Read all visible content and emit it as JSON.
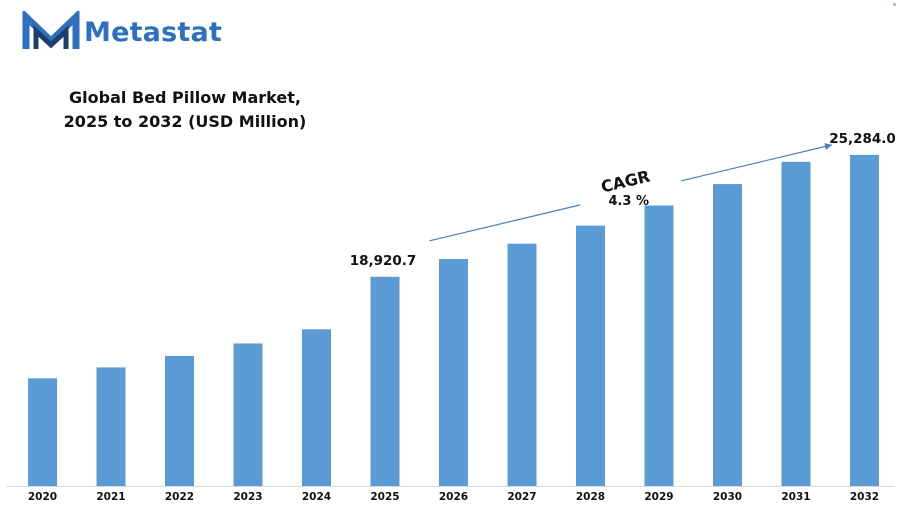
{
  "brand": {
    "name": "Metastat",
    "logo_icon": "metastat-m-logo-icon",
    "colors": {
      "primary": "#2e6fc0",
      "dark": "#1f3d6b"
    }
  },
  "chart_data": {
    "type": "bar",
    "title": "Global Bed Pillow Market, 2025 to 2032 (USD Million)",
    "title_lines": [
      "Global Bed Pillow Market,",
      "2025 to 2032 (USD Million)"
    ],
    "categories": [
      "2020",
      "2021",
      "2022",
      "2023",
      "2024",
      "2025",
      "2026",
      "2027",
      "2028",
      "2029",
      "2030",
      "2031",
      "2032"
    ],
    "series": [
      {
        "values": [
          13620,
          14190,
          14790,
          15440,
          16180,
          18920.7,
          19850,
          20650,
          21590,
          22640,
          23760,
          24920,
          25284.0
        ],
        "color": "#5b9bd5"
      }
    ],
    "data_labels": [
      {
        "category": "2025",
        "text": "18,920.7"
      },
      {
        "category": "2032",
        "text": "25,284.0"
      }
    ],
    "annotation": {
      "label": "CAGR",
      "value": "4.3 %",
      "arrow_from": "2025",
      "arrow_to": "2032",
      "arrow_color": "#4a7fc1"
    },
    "ylim": [
      8000,
      27000
    ],
    "grid": false,
    "xlabel": "",
    "ylabel": ""
  }
}
